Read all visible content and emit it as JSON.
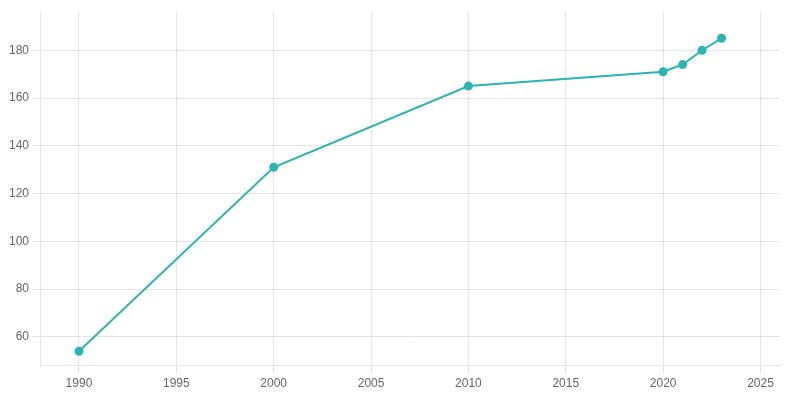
{
  "chart_data": {
    "type": "line",
    "x": [
      1990,
      2000,
      2010,
      2020,
      2021,
      2022,
      2023
    ],
    "values": [
      54,
      131,
      165,
      171,
      174,
      180,
      185
    ],
    "color": "#2ab5b5",
    "marker": "circle",
    "xlim": [
      1988,
      2026
    ],
    "xticks": [
      1990,
      1995,
      2000,
      2005,
      2010,
      2015,
      2020,
      2025
    ],
    "ylim": [
      48,
      196
    ],
    "yticks": [
      60,
      80,
      100,
      120,
      140,
      160,
      180
    ],
    "grid": true
  }
}
